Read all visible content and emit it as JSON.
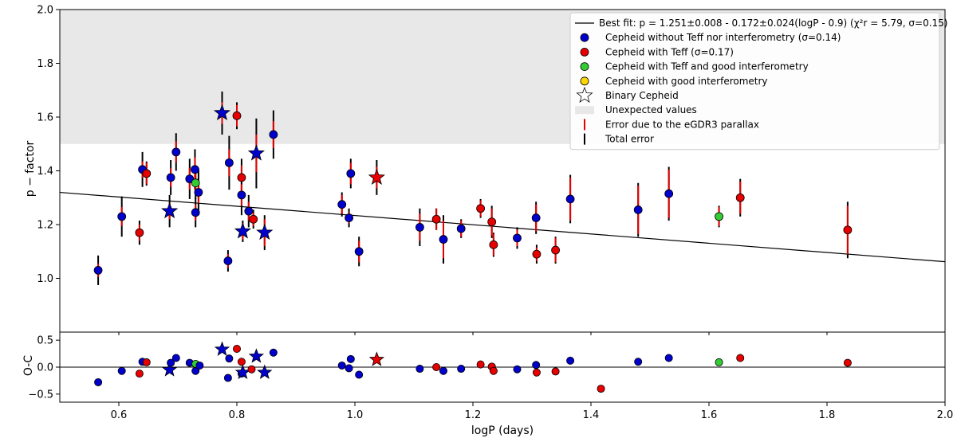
{
  "chart_data": [
    {
      "type": "scatter",
      "panel": "main",
      "xlabel": "",
      "ylabel": "p − factor",
      "xlim": [
        0.5,
        2.0
      ],
      "ylim": [
        0.8,
        2.0
      ],
      "xticks": [
        "0.6",
        "0.8",
        "1.0",
        "1.2",
        "1.4",
        "1.6",
        "1.8",
        "2.0"
      ],
      "yticks": [
        "1.0",
        "1.2",
        "1.4",
        "1.6",
        "1.8",
        "2.0"
      ],
      "x_tick_values": [
        0.6,
        0.8,
        1.0,
        1.2,
        1.4,
        1.6,
        1.8,
        2.0
      ],
      "y_tick_values": [
        1.0,
        1.2,
        1.4,
        1.6,
        1.8,
        2.0
      ],
      "unexpected_region": {
        "y_from": 1.5,
        "y_to": 2.0
      },
      "fit_line": {
        "intercept": 1.251,
        "slope": -0.172,
        "pivot": 0.9
      },
      "legend": {
        "placement": "top-right",
        "fit_label": "Best fit: p = 1.251±0.008 - 0.172±0.024(logP - 0.9) (χ²r = 5.79, σ=0.15)",
        "items": [
          {
            "kind": "dot",
            "color": "#0000cc",
            "label": "Cepheid without Teff nor interferometry (σ=0.14)"
          },
          {
            "kind": "dot",
            "color": "#e60000",
            "label": "Cepheid with Teff (σ=0.17)"
          },
          {
            "kind": "dot",
            "color": "#33cc33",
            "label": "Cepheid with Teff and good interferometry"
          },
          {
            "kind": "dot",
            "color": "#ffd700",
            "label": "Cepheid with good interferometry"
          },
          {
            "kind": "star",
            "color": "#ffffff",
            "label": "Binary Cepheid"
          },
          {
            "kind": "patch",
            "color": "#e8e8e8",
            "label": "Unexpected values"
          },
          {
            "kind": "bar",
            "color": "#e60000",
            "label": "Error due to the eGDR3 parallax"
          },
          {
            "kind": "bar",
            "color": "#000000",
            "label": "Total error"
          }
        ]
      },
      "points": [
        {
          "x": 0.565,
          "y": 1.03,
          "err_total": 0.055,
          "err_plx": 0.025,
          "color": "#0000cc",
          "marker": "dot"
        },
        {
          "x": 0.605,
          "y": 1.23,
          "err_total": 0.075,
          "err_plx": 0.035,
          "color": "#0000cc",
          "marker": "dot"
        },
        {
          "x": 0.635,
          "y": 1.17,
          "err_total": 0.045,
          "err_plx": 0.03,
          "color": "#e60000",
          "marker": "dot"
        },
        {
          "x": 0.64,
          "y": 1.405,
          "err_total": 0.065,
          "err_plx": 0.03,
          "color": "#0000cc",
          "marker": "dot"
        },
        {
          "x": 0.647,
          "y": 1.39,
          "err_total": 0.045,
          "err_plx": 0.04,
          "color": "#e60000",
          "marker": "dot"
        },
        {
          "x": 0.686,
          "y": 1.25,
          "err_total": 0.06,
          "err_plx": 0.03,
          "color": "#0000cc",
          "marker": "star"
        },
        {
          "x": 0.688,
          "y": 1.375,
          "err_total": 0.065,
          "err_plx": 0.035,
          "color": "#0000cc",
          "marker": "dot"
        },
        {
          "x": 0.697,
          "y": 1.47,
          "err_total": 0.07,
          "err_plx": 0.04,
          "color": "#0000cc",
          "marker": "dot"
        },
        {
          "x": 0.72,
          "y": 1.37,
          "err_total": 0.075,
          "err_plx": 0.04,
          "color": "#0000cc",
          "marker": "dot"
        },
        {
          "x": 0.729,
          "y": 1.405,
          "err_total": 0.075,
          "err_plx": 0.045,
          "color": "#0000cc",
          "marker": "dot"
        },
        {
          "x": 0.73,
          "y": 1.245,
          "err_total": 0.055,
          "err_plx": 0.03,
          "color": "#0000cc",
          "marker": "dot"
        },
        {
          "x": 0.73,
          "y": 1.355,
          "err_total": 0.06,
          "err_plx": 0.04,
          "color": "#33cc33",
          "marker": "dot"
        },
        {
          "x": 0.735,
          "y": 1.32,
          "err_total": 0.085,
          "err_plx": 0.04,
          "color": "#0000cc",
          "marker": "dot"
        },
        {
          "x": 0.775,
          "y": 1.615,
          "err_total": 0.08,
          "err_plx": 0.04,
          "color": "#0000cc",
          "marker": "star"
        },
        {
          "x": 0.785,
          "y": 1.065,
          "err_total": 0.04,
          "err_plx": 0.025,
          "color": "#0000cc",
          "marker": "dot"
        },
        {
          "x": 0.787,
          "y": 1.43,
          "err_total": 0.1,
          "err_plx": 0.05,
          "color": "#0000cc",
          "marker": "dot"
        },
        {
          "x": 0.8,
          "y": 1.605,
          "err_total": 0.05,
          "err_plx": 0.04,
          "color": "#e60000",
          "marker": "dot"
        },
        {
          "x": 0.808,
          "y": 1.375,
          "err_total": 0.07,
          "err_plx": 0.045,
          "color": "#e60000",
          "marker": "dot"
        },
        {
          "x": 0.808,
          "y": 1.31,
          "err_total": 0.075,
          "err_plx": 0.04,
          "color": "#0000cc",
          "marker": "dot"
        },
        {
          "x": 0.81,
          "y": 1.175,
          "err_total": 0.04,
          "err_plx": 0.03,
          "color": "#0000cc",
          "marker": "star"
        },
        {
          "x": 0.82,
          "y": 1.25,
          "err_total": 0.06,
          "err_plx": 0.035,
          "color": "#0000cc",
          "marker": "dot"
        },
        {
          "x": 0.828,
          "y": 1.22,
          "err_total": 0.035,
          "err_plx": 0.025,
          "color": "#e60000",
          "marker": "dot"
        },
        {
          "x": 0.833,
          "y": 1.465,
          "err_total": 0.13,
          "err_plx": 0.07,
          "color": "#0000cc",
          "marker": "star"
        },
        {
          "x": 0.847,
          "y": 1.17,
          "err_total": 0.065,
          "err_plx": 0.05,
          "color": "#0000cc",
          "marker": "star"
        },
        {
          "x": 0.862,
          "y": 1.535,
          "err_total": 0.09,
          "err_plx": 0.05,
          "color": "#0000cc",
          "marker": "dot"
        },
        {
          "x": 0.978,
          "y": 1.275,
          "err_total": 0.045,
          "err_plx": 0.035,
          "color": "#0000cc",
          "marker": "dot"
        },
        {
          "x": 0.99,
          "y": 1.225,
          "err_total": 0.035,
          "err_plx": 0.02,
          "color": "#0000cc",
          "marker": "dot"
        },
        {
          "x": 0.993,
          "y": 1.39,
          "err_total": 0.055,
          "err_plx": 0.04,
          "color": "#0000cc",
          "marker": "dot"
        },
        {
          "x": 1.007,
          "y": 1.1,
          "err_total": 0.055,
          "err_plx": 0.04,
          "color": "#0000cc",
          "marker": "dot"
        },
        {
          "x": 1.037,
          "y": 1.375,
          "err_total": 0.065,
          "err_plx": 0.04,
          "color": "#e60000",
          "marker": "star"
        },
        {
          "x": 1.11,
          "y": 1.19,
          "err_total": 0.07,
          "err_plx": 0.05,
          "color": "#0000cc",
          "marker": "dot"
        },
        {
          "x": 1.138,
          "y": 1.22,
          "err_total": 0.04,
          "err_plx": 0.04,
          "color": "#e60000",
          "marker": "dot"
        },
        {
          "x": 1.15,
          "y": 1.145,
          "err_total": 0.09,
          "err_plx": 0.07,
          "color": "#0000cc",
          "marker": "dot"
        },
        {
          "x": 1.18,
          "y": 1.185,
          "err_total": 0.035,
          "err_plx": 0.03,
          "color": "#0000cc",
          "marker": "dot"
        },
        {
          "x": 1.213,
          "y": 1.26,
          "err_total": 0.035,
          "err_plx": 0.03,
          "color": "#e60000",
          "marker": "dot"
        },
        {
          "x": 1.232,
          "y": 1.21,
          "err_total": 0.06,
          "err_plx": 0.05,
          "color": "#e60000",
          "marker": "dot"
        },
        {
          "x": 1.235,
          "y": 1.125,
          "err_total": 0.045,
          "err_plx": 0.04,
          "color": "#e60000",
          "marker": "dot"
        },
        {
          "x": 1.275,
          "y": 1.15,
          "err_total": 0.04,
          "err_plx": 0.03,
          "color": "#0000cc",
          "marker": "dot"
        },
        {
          "x": 1.307,
          "y": 1.225,
          "err_total": 0.06,
          "err_plx": 0.05,
          "color": "#0000cc",
          "marker": "dot"
        },
        {
          "x": 1.308,
          "y": 1.09,
          "err_total": 0.035,
          "err_plx": 0.025,
          "color": "#e60000",
          "marker": "dot"
        },
        {
          "x": 1.34,
          "y": 1.105,
          "err_total": 0.05,
          "err_plx": 0.045,
          "color": "#e60000",
          "marker": "dot"
        },
        {
          "x": 1.365,
          "y": 1.295,
          "err_total": 0.09,
          "err_plx": 0.08,
          "color": "#0000cc",
          "marker": "dot"
        },
        {
          "x": 1.48,
          "y": 1.255,
          "err_total": 0.1,
          "err_plx": 0.09,
          "color": "#0000cc",
          "marker": "dot"
        },
        {
          "x": 1.532,
          "y": 1.315,
          "err_total": 0.1,
          "err_plx": 0.09,
          "color": "#0000cc",
          "marker": "dot"
        },
        {
          "x": 1.617,
          "y": 1.23,
          "err_total": 0.04,
          "err_plx": 0.035,
          "color": "#33cc33",
          "marker": "dot"
        },
        {
          "x": 1.653,
          "y": 1.3,
          "err_total": 0.07,
          "err_plx": 0.06,
          "color": "#e60000",
          "marker": "dot"
        },
        {
          "x": 1.835,
          "y": 1.18,
          "err_total": 0.105,
          "err_plx": 0.09,
          "color": "#e60000",
          "marker": "dot"
        }
      ]
    },
    {
      "type": "scatter",
      "panel": "residuals",
      "xlabel": "logP (days)",
      "ylabel": "O-C",
      "xlim": [
        0.5,
        2.0
      ],
      "ylim": [
        -0.65,
        0.65
      ],
      "xticks": [
        "0.6",
        "0.8",
        "1.0",
        "1.2",
        "1.4",
        "1.6",
        "1.8",
        "2.0"
      ],
      "yticks": [
        "−0.5",
        "0.0",
        "0.5"
      ],
      "x_tick_values": [
        0.6,
        0.8,
        1.0,
        1.2,
        1.4,
        1.6,
        1.8,
        2.0
      ],
      "y_tick_values": [
        -0.5,
        0.0,
        0.5
      ],
      "zero_line": 0.0,
      "points": [
        {
          "x": 0.565,
          "y": -0.28,
          "color": "#0000cc",
          "marker": "dot"
        },
        {
          "x": 0.605,
          "y": -0.07,
          "color": "#0000cc",
          "marker": "dot"
        },
        {
          "x": 0.635,
          "y": -0.12,
          "color": "#e60000",
          "marker": "dot"
        },
        {
          "x": 0.64,
          "y": 0.1,
          "color": "#0000cc",
          "marker": "dot"
        },
        {
          "x": 0.647,
          "y": 0.09,
          "color": "#e60000",
          "marker": "dot"
        },
        {
          "x": 0.686,
          "y": -0.05,
          "color": "#0000cc",
          "marker": "star"
        },
        {
          "x": 0.688,
          "y": 0.08,
          "color": "#0000cc",
          "marker": "dot"
        },
        {
          "x": 0.697,
          "y": 0.17,
          "color": "#0000cc",
          "marker": "dot"
        },
        {
          "x": 0.72,
          "y": 0.08,
          "color": "#0000cc",
          "marker": "dot"
        },
        {
          "x": 0.73,
          "y": -0.07,
          "color": "#0000cc",
          "marker": "dot"
        },
        {
          "x": 0.73,
          "y": 0.06,
          "color": "#33cc33",
          "marker": "dot"
        },
        {
          "x": 0.737,
          "y": 0.03,
          "color": "#0000cc",
          "marker": "dot"
        },
        {
          "x": 0.775,
          "y": 0.33,
          "color": "#0000cc",
          "marker": "star"
        },
        {
          "x": 0.785,
          "y": -0.2,
          "color": "#0000cc",
          "marker": "dot"
        },
        {
          "x": 0.787,
          "y": 0.16,
          "color": "#0000cc",
          "marker": "dot"
        },
        {
          "x": 0.8,
          "y": 0.34,
          "color": "#e60000",
          "marker": "dot"
        },
        {
          "x": 0.808,
          "y": 0.1,
          "color": "#e60000",
          "marker": "dot"
        },
        {
          "x": 0.808,
          "y": -0.12,
          "color": "#0000cc",
          "marker": "dot"
        },
        {
          "x": 0.81,
          "y": -0.1,
          "color": "#0000cc",
          "marker": "star"
        },
        {
          "x": 0.825,
          "y": -0.04,
          "color": "#e60000",
          "marker": "dot"
        },
        {
          "x": 0.833,
          "y": 0.2,
          "color": "#0000cc",
          "marker": "star"
        },
        {
          "x": 0.847,
          "y": -0.1,
          "color": "#0000cc",
          "marker": "star"
        },
        {
          "x": 0.862,
          "y": 0.27,
          "color": "#0000cc",
          "marker": "dot"
        },
        {
          "x": 0.978,
          "y": 0.03,
          "color": "#0000cc",
          "marker": "dot"
        },
        {
          "x": 0.99,
          "y": -0.02,
          "color": "#0000cc",
          "marker": "dot"
        },
        {
          "x": 0.993,
          "y": 0.15,
          "color": "#0000cc",
          "marker": "dot"
        },
        {
          "x": 1.007,
          "y": -0.14,
          "color": "#0000cc",
          "marker": "dot"
        },
        {
          "x": 1.037,
          "y": 0.14,
          "color": "#e60000",
          "marker": "star"
        },
        {
          "x": 1.11,
          "y": -0.03,
          "color": "#0000cc",
          "marker": "dot"
        },
        {
          "x": 1.138,
          "y": 0.0,
          "color": "#e60000",
          "marker": "dot"
        },
        {
          "x": 1.15,
          "y": -0.07,
          "color": "#0000cc",
          "marker": "dot"
        },
        {
          "x": 1.18,
          "y": -0.03,
          "color": "#0000cc",
          "marker": "dot"
        },
        {
          "x": 1.213,
          "y": 0.05,
          "color": "#e60000",
          "marker": "dot"
        },
        {
          "x": 1.232,
          "y": 0.01,
          "color": "#e60000",
          "marker": "dot"
        },
        {
          "x": 1.235,
          "y": -0.07,
          "color": "#e60000",
          "marker": "dot"
        },
        {
          "x": 1.275,
          "y": -0.04,
          "color": "#0000cc",
          "marker": "dot"
        },
        {
          "x": 1.307,
          "y": 0.04,
          "color": "#0000cc",
          "marker": "dot"
        },
        {
          "x": 1.308,
          "y": -0.1,
          "color": "#e60000",
          "marker": "dot"
        },
        {
          "x": 1.34,
          "y": -0.08,
          "color": "#e60000",
          "marker": "dot"
        },
        {
          "x": 1.365,
          "y": 0.12,
          "color": "#0000cc",
          "marker": "dot"
        },
        {
          "x": 1.417,
          "y": -0.4,
          "color": "#e60000",
          "marker": "dot"
        },
        {
          "x": 1.48,
          "y": 0.1,
          "color": "#0000cc",
          "marker": "dot"
        },
        {
          "x": 1.532,
          "y": 0.17,
          "color": "#0000cc",
          "marker": "dot"
        },
        {
          "x": 1.617,
          "y": 0.09,
          "color": "#33cc33",
          "marker": "dot"
        },
        {
          "x": 1.653,
          "y": 0.17,
          "color": "#e60000",
          "marker": "dot"
        },
        {
          "x": 1.835,
          "y": 0.08,
          "color": "#e60000",
          "marker": "dot"
        }
      ]
    }
  ]
}
